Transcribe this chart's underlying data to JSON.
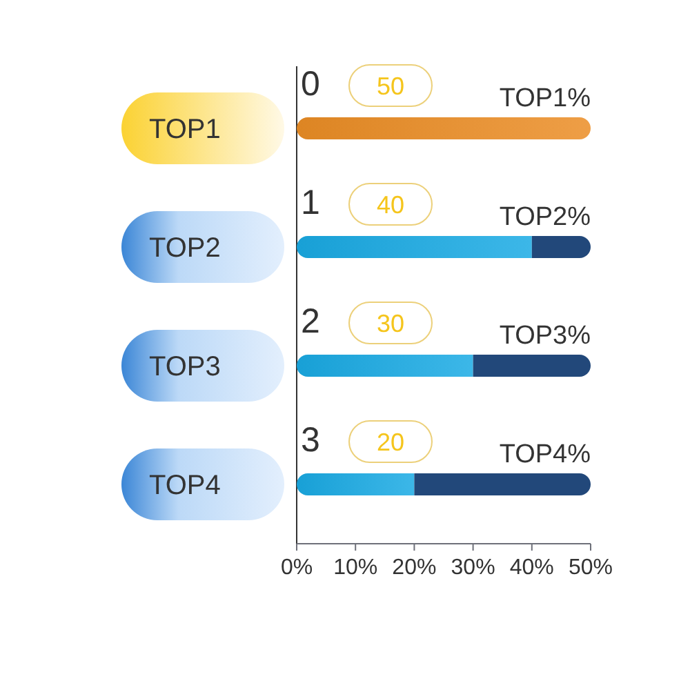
{
  "chart_data": {
    "type": "bar",
    "orientation": "horizontal",
    "stacked": true,
    "categories": [
      "TOP1",
      "TOP2",
      "TOP3",
      "TOP4"
    ],
    "series": [
      {
        "values": [
          50,
          40,
          30,
          20
        ],
        "colors": [
          "#eb8d25",
          "#1aaae4",
          "#1aaae4",
          "#1aaae4"
        ]
      },
      {
        "values": [
          null,
          10,
          20,
          30
        ],
        "color": "#22487a"
      }
    ],
    "xlim": [
      0,
      50
    ],
    "xticks": [
      {
        "value": 0,
        "label": "0%"
      },
      {
        "value": 10,
        "label": "10%"
      },
      {
        "value": 20,
        "label": "20%"
      },
      {
        "value": 30,
        "label": "30%"
      },
      {
        "value": 40,
        "label": "40%"
      },
      {
        "value": 50,
        "label": "50%"
      }
    ],
    "annotations": [
      "0",
      "50",
      "TOP1%",
      "1",
      "40",
      "TOP2%",
      "2",
      "30",
      "TOP3%",
      "3",
      "20",
      "TOP4%"
    ]
  }
}
